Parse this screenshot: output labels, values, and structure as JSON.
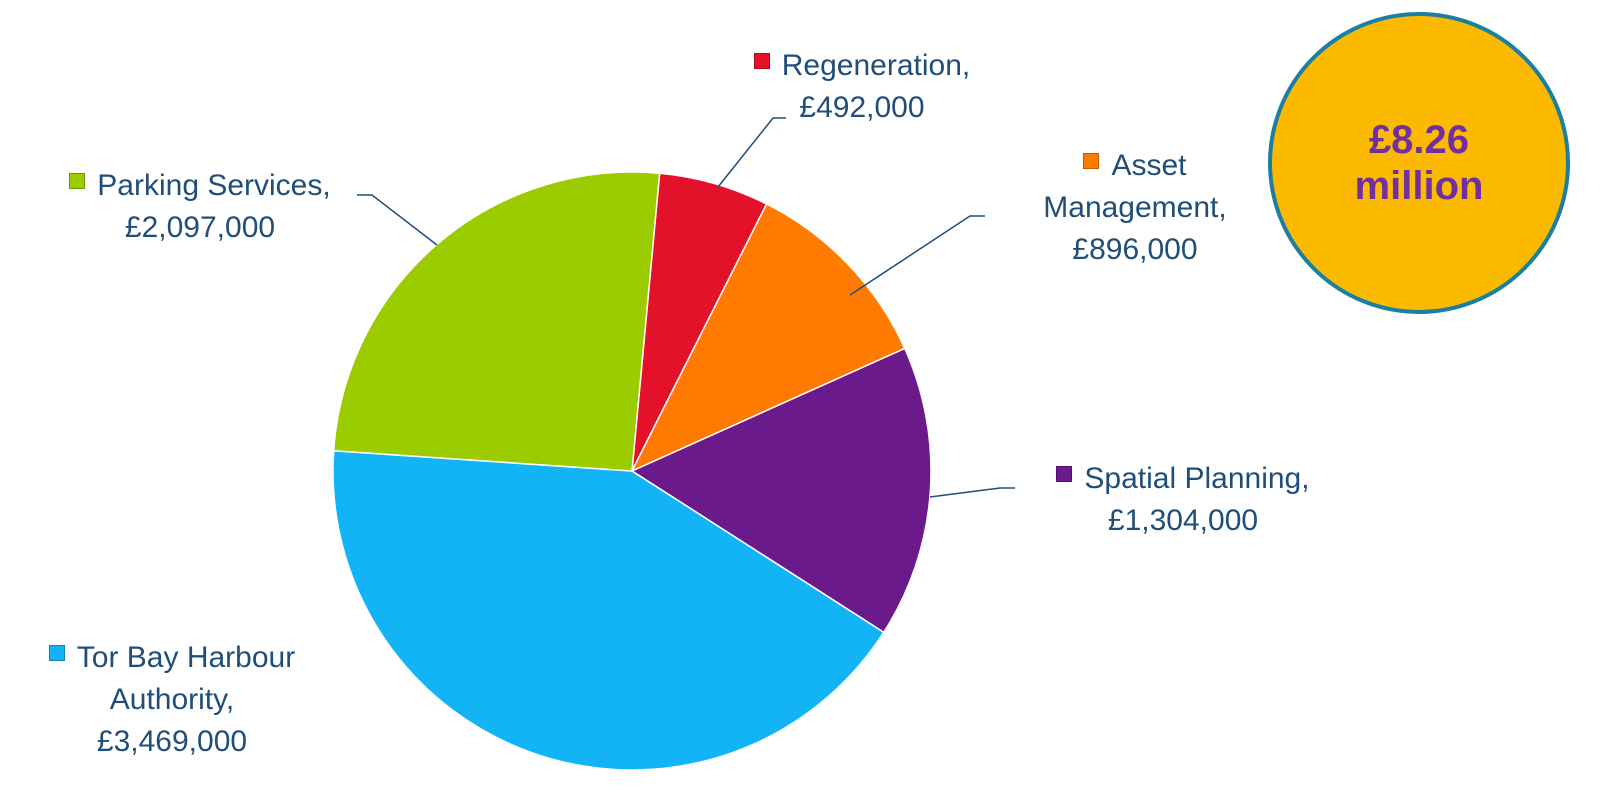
{
  "chart_data": {
    "type": "pie",
    "categories": [
      "Regeneration,",
      "Asset Management,",
      "Spatial Planning,",
      "Tor Bay Harbour Authority,",
      "Parking Services,"
    ],
    "values": [
      492000,
      896000,
      1304000,
      3469000,
      2097000
    ],
    "value_labels": [
      "£492,000",
      "£896,000",
      "£1,304,000",
      "£3,469,000",
      "£2,097,000"
    ],
    "colors": [
      "#e3112a",
      "#ff7a00",
      "#6b1a8c",
      "#12b4f5",
      "#9bcc00"
    ],
    "annotation": [
      "£8.26",
      "million"
    ]
  }
}
